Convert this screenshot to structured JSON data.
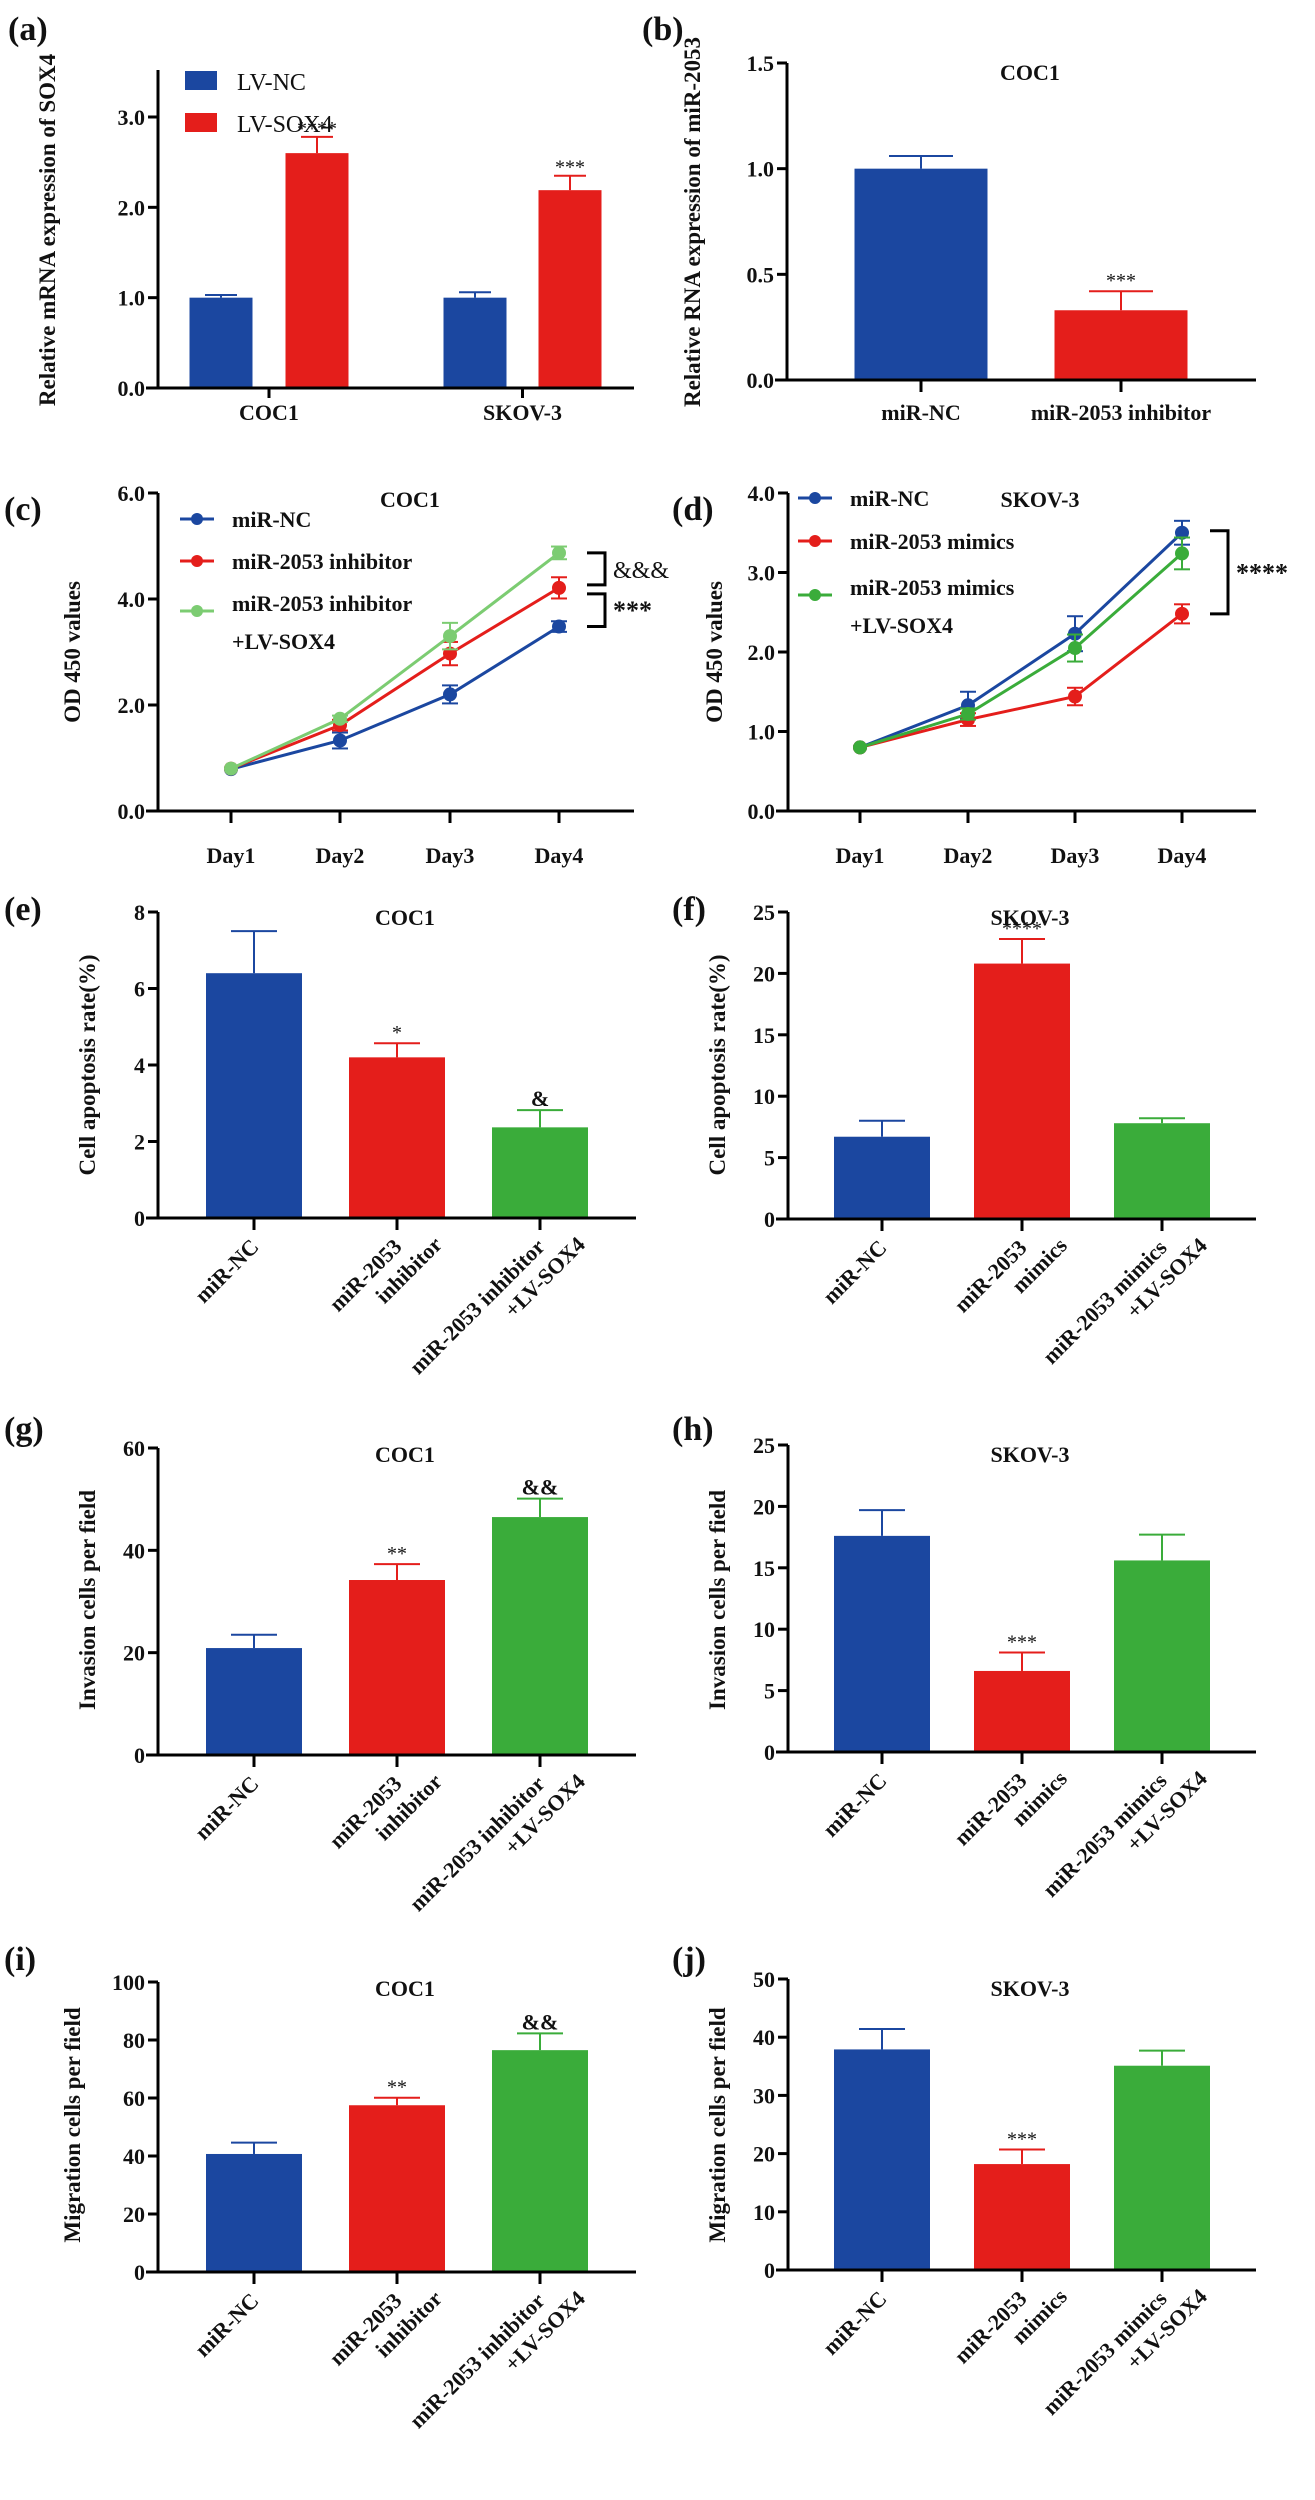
{
  "colors": {
    "blue": "#1b47a0",
    "red": "#e41e1b",
    "green": "#3aac3a",
    "light_green": "#7ccc72",
    "axis": "#000000"
  },
  "chart_data": [
    {
      "id": "a",
      "panel_label": "(a)",
      "type": "bar",
      "title": "",
      "ylabel": "Relative mRNA expression of SOX4",
      "xlabel": "",
      "ylim": [
        0,
        3.5
      ],
      "yticks": [
        "0.0",
        "1.0",
        "2.0",
        "3.0"
      ],
      "ytick_values": [
        0,
        1,
        2,
        3
      ],
      "categories": [
        "COC1",
        "SKOV-3"
      ],
      "legend": "top-left",
      "series": [
        {
          "name": "LV-NC",
          "color": "blue",
          "values": [
            1.0,
            1.0
          ],
          "errors": [
            0.03,
            0.06
          ],
          "sig": [
            "",
            ""
          ]
        },
        {
          "name": "LV-SOX4",
          "color": "red",
          "values": [
            2.6,
            2.19
          ],
          "errors": [
            0.18,
            0.16
          ],
          "sig": [
            "****",
            "***"
          ]
        }
      ]
    },
    {
      "id": "b",
      "panel_label": "(b)",
      "type": "bar",
      "title": "COC1",
      "ylabel": "Relative RNA expression of miR-2053",
      "ylim": [
        0,
        1.5
      ],
      "yticks": [
        "0.0",
        "0.5",
        "1.0",
        "1.5"
      ],
      "ytick_values": [
        0,
        0.5,
        1.0,
        1.5
      ],
      "categories": [
        "miR-NC",
        "miR-2053 inhibitor"
      ],
      "values": [
        1.0,
        0.33
      ],
      "errors": [
        0.06,
        0.09
      ],
      "bar_colors": [
        "blue",
        "red"
      ],
      "sig": [
        "",
        "***"
      ]
    },
    {
      "id": "c",
      "panel_label": "(c)",
      "type": "line",
      "title": "COC1",
      "ylabel": "OD 450 values",
      "ylim": [
        0,
        6
      ],
      "yticks": [
        "0.0",
        "2.0",
        "4.0",
        "6.0"
      ],
      "ytick_values": [
        0,
        2,
        4,
        6
      ],
      "x": [
        "Day1",
        "Day2",
        "Day3",
        "Day4"
      ],
      "legend": "top-left",
      "series": [
        {
          "name": "miR-NC",
          "legend_lines": [
            "miR-NC"
          ],
          "color": "blue",
          "values": [
            0.79,
            1.33,
            2.2,
            3.48
          ],
          "errors": [
            0.03,
            0.15,
            0.17,
            0.1
          ]
        },
        {
          "name": "miR-2053 inhibitor",
          "legend_lines": [
            "miR-2053 inhibitor"
          ],
          "color": "red",
          "values": [
            0.8,
            1.62,
            2.97,
            4.21
          ],
          "errors": [
            0.03,
            0.1,
            0.22,
            0.2
          ]
        },
        {
          "name": "miR-2053 inhibitor +LV-SOX4",
          "legend_lines": [
            "miR-2053 inhibitor",
            "+LV-SOX4"
          ],
          "color": "light_green",
          "values": [
            0.8,
            1.74,
            3.3,
            4.87
          ],
          "errors": [
            0.03,
            0.06,
            0.25,
            0.12
          ]
        }
      ],
      "brackets": [
        {
          "from_series": 2,
          "to_series": 1,
          "label": "&&&"
        },
        {
          "from_series": 1,
          "to_series": 0,
          "label": "***"
        }
      ]
    },
    {
      "id": "d",
      "panel_label": "(d)",
      "type": "line",
      "title": "SKOV-3",
      "ylabel": "OD 450 values",
      "ylim": [
        0,
        4
      ],
      "yticks": [
        "0.0",
        "1.0",
        "2.0",
        "3.0",
        "4.0"
      ],
      "ytick_values": [
        0,
        1,
        2,
        3,
        4
      ],
      "x": [
        "Day1",
        "Day2",
        "Day3",
        "Day4"
      ],
      "legend": "top-left",
      "series": [
        {
          "name": "miR-NC",
          "legend_lines": [
            "miR-NC"
          ],
          "color": "blue",
          "values": [
            0.8,
            1.33,
            2.23,
            3.5
          ],
          "errors": [
            0.03,
            0.17,
            0.22,
            0.15
          ]
        },
        {
          "name": "miR-2053 mimics",
          "legend_lines": [
            "miR-2053 mimics"
          ],
          "color": "red",
          "values": [
            0.8,
            1.15,
            1.44,
            2.48
          ],
          "errors": [
            0.03,
            0.08,
            0.11,
            0.12
          ]
        },
        {
          "name": "miR-2053 mimics +LV-SOX4",
          "legend_lines": [
            "miR-2053 mimics",
            "+LV-SOX4"
          ],
          "color": "green",
          "values": [
            0.8,
            1.22,
            2.05,
            3.24
          ],
          "errors": [
            0.03,
            0.07,
            0.17,
            0.2
          ]
        }
      ],
      "brackets": [
        {
          "from_series": 0,
          "to_series": 1,
          "label": "****"
        }
      ]
    },
    {
      "id": "e",
      "panel_label": "(e)",
      "type": "bar",
      "title": "COC1",
      "ylabel": "Cell apoptosis rate(%)",
      "ylim": [
        0,
        8
      ],
      "yticks": [
        "0",
        "2",
        "4",
        "6",
        "8"
      ],
      "ytick_values": [
        0,
        2,
        4,
        6,
        8
      ],
      "categories": [
        [
          "miR-NC"
        ],
        [
          "miR-2053",
          "inhibitor"
        ],
        [
          "miR-2053 inhibitor",
          "+LV-SOX4"
        ]
      ],
      "values": [
        6.4,
        4.2,
        2.37
      ],
      "errors": [
        1.1,
        0.37,
        0.45
      ],
      "bar_colors": [
        "blue",
        "red",
        "green"
      ],
      "sig": [
        "",
        "*",
        "&"
      ]
    },
    {
      "id": "f",
      "panel_label": "(f)",
      "type": "bar",
      "title": "SKOV-3",
      "ylabel": "Cell apoptosis rate(%)",
      "ylim": [
        0,
        25
      ],
      "yticks": [
        "0",
        "5",
        "10",
        "15",
        "20",
        "25"
      ],
      "ytick_values": [
        0,
        5,
        10,
        15,
        20,
        25
      ],
      "categories": [
        [
          "miR-NC"
        ],
        [
          "miR-2053",
          "mimics"
        ],
        [
          "miR-2053 mimics",
          "+LV-SOX4"
        ]
      ],
      "values": [
        6.7,
        20.8,
        7.8
      ],
      "errors": [
        1.3,
        2.0,
        0.4
      ],
      "bar_colors": [
        "blue",
        "red",
        "green"
      ],
      "sig": [
        "",
        "****",
        ""
      ]
    },
    {
      "id": "g",
      "panel_label": "(g)",
      "type": "bar",
      "title": "COC1",
      "ylabel": "Invasion cells per field",
      "ylim": [
        0,
        60
      ],
      "yticks": [
        "0",
        "20",
        "40",
        "60"
      ],
      "ytick_values": [
        0,
        20,
        40,
        60
      ],
      "categories": [
        [
          "miR-NC"
        ],
        [
          "miR-2053",
          "inhibitor"
        ],
        [
          "miR-2053 inhibitor",
          "+LV-SOX4"
        ]
      ],
      "values": [
        20.9,
        34.2,
        46.5
      ],
      "errors": [
        2.6,
        3.1,
        3.6
      ],
      "bar_colors": [
        "blue",
        "red",
        "green"
      ],
      "sig": [
        "",
        "**",
        "&&"
      ]
    },
    {
      "id": "h",
      "panel_label": "(h)",
      "type": "bar",
      "title": "SKOV-3",
      "ylabel": "Invasion cells per field",
      "ylim": [
        0,
        25
      ],
      "yticks": [
        "0",
        "5",
        "10",
        "15",
        "20",
        "25"
      ],
      "ytick_values": [
        0,
        5,
        10,
        15,
        20,
        25
      ],
      "categories": [
        [
          "miR-NC"
        ],
        [
          "miR-2053",
          "mimics"
        ],
        [
          "miR-2053 mimics",
          "+LV-SOX4"
        ]
      ],
      "values": [
        17.6,
        6.6,
        15.6
      ],
      "errors": [
        2.1,
        1.5,
        2.1
      ],
      "bar_colors": [
        "blue",
        "red",
        "green"
      ],
      "sig": [
        "",
        "***",
        ""
      ]
    },
    {
      "id": "i",
      "panel_label": "(i)",
      "type": "bar",
      "title": "COC1",
      "ylabel": "Migration cells per field",
      "ylim": [
        0,
        100
      ],
      "yticks": [
        "0",
        "20",
        "40",
        "60",
        "80",
        "100"
      ],
      "ytick_values": [
        0,
        20,
        40,
        60,
        80,
        100
      ],
      "categories": [
        [
          "miR-NC"
        ],
        [
          "miR-2053",
          "inhibitor"
        ],
        [
          "miR-2053 inhibitor",
          "+LV-SOX4"
        ]
      ],
      "values": [
        40.7,
        57.5,
        76.5
      ],
      "errors": [
        3.9,
        2.6,
        5.8
      ],
      "bar_colors": [
        "blue",
        "red",
        "green"
      ],
      "sig": [
        "",
        "**",
        "&&"
      ]
    },
    {
      "id": "j",
      "panel_label": "(j)",
      "type": "bar",
      "title": "SKOV-3",
      "ylabel": "Migration cells per field",
      "ylim": [
        0,
        50
      ],
      "yticks": [
        "0",
        "10",
        "20",
        "30",
        "40",
        "50"
      ],
      "ytick_values": [
        0,
        10,
        20,
        30,
        40,
        50
      ],
      "categories": [
        [
          "miR-NC"
        ],
        [
          "miR-2053",
          "mimics"
        ],
        [
          "miR-2053 mimics",
          "+LV-SOX4"
        ]
      ],
      "values": [
        37.9,
        18.2,
        35.1
      ],
      "errors": [
        3.5,
        2.5,
        2.6
      ],
      "bar_colors": [
        "blue",
        "red",
        "green"
      ],
      "sig": [
        "",
        "***",
        ""
      ]
    }
  ]
}
